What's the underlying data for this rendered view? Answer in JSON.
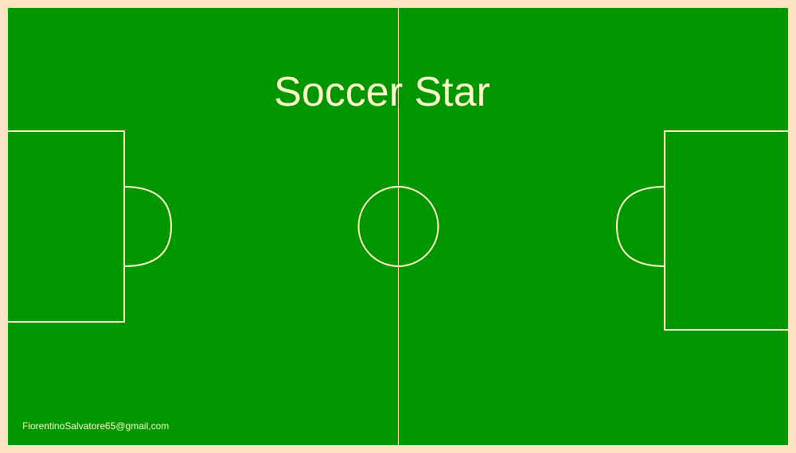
{
  "game": {
    "title": "Soccer Star",
    "contact_email": "FiorentinoSalvatore65@gmail,com"
  },
  "colors": {
    "frame": "#ffe4c4",
    "pitch": "#009600",
    "lines": "#ffffcc",
    "title_text": "#ffffcc",
    "footer_text": "#ffffcc"
  }
}
